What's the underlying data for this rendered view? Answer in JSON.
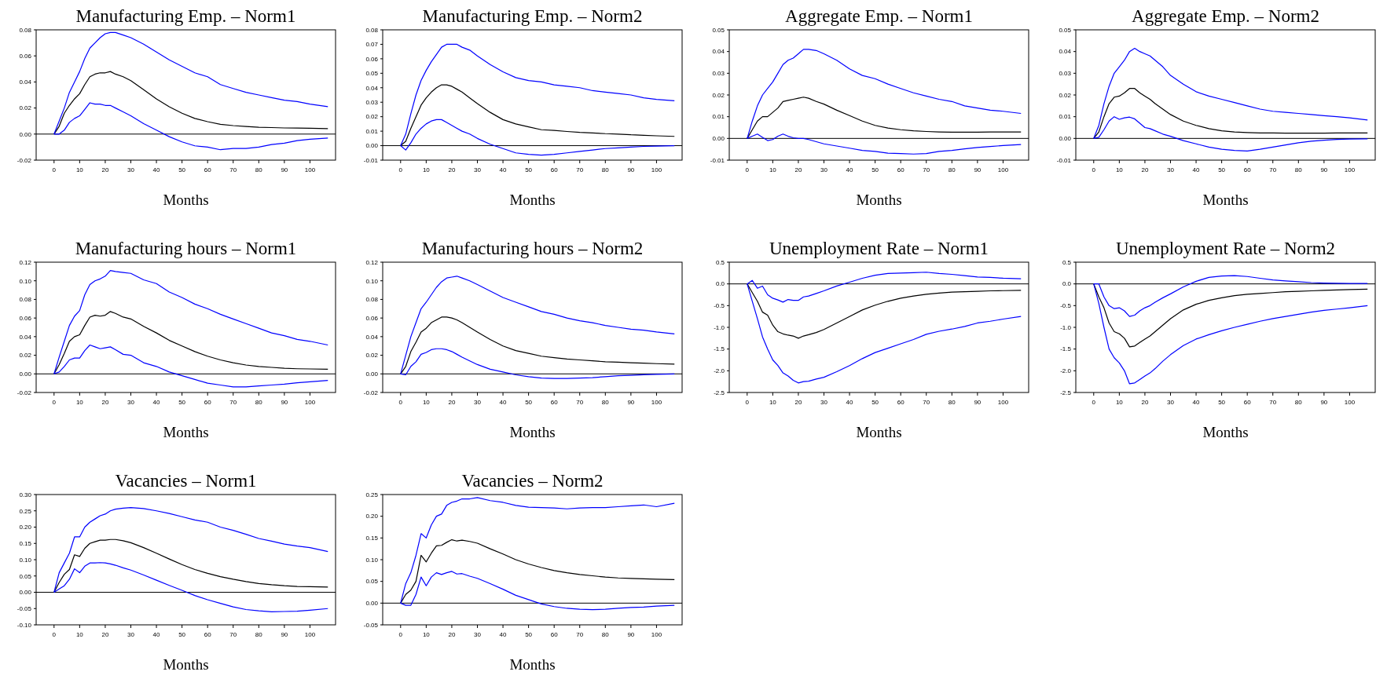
{
  "chart_data": [
    {
      "type": "line",
      "title": "Manufacturing Emp. – Norm1",
      "xlabel": "Months",
      "x": [
        0,
        2,
        4,
        6,
        8,
        10,
        12,
        14,
        16,
        18,
        20,
        22,
        24,
        27,
        30,
        35,
        40,
        45,
        50,
        55,
        60,
        65,
        70,
        75,
        80,
        85,
        90,
        95,
        100,
        107
      ],
      "xlim": [
        -7,
        110
      ],
      "xticks": [
        0,
        10,
        20,
        30,
        40,
        50,
        60,
        70,
        80,
        90,
        100
      ],
      "ylim": [
        -0.02,
        0.08
      ],
      "yticks": [
        {
          "value": -0.02,
          "label": "-0.02"
        },
        {
          "value": 0,
          "label": "0.00"
        },
        {
          "value": 0.02,
          "label": "0.02"
        },
        {
          "value": 0.04,
          "label": "0.04"
        },
        {
          "value": 0.06,
          "label": "0.06"
        },
        {
          "value": 0.08,
          "label": "0.08"
        }
      ],
      "ref_lines": [
        {
          "axis": "y",
          "value": 0,
          "color": "#000000"
        }
      ],
      "series": [
        {
          "color": "#000000",
          "values": [
            0,
            0.006,
            0.016,
            0.022,
            0.027,
            0.031,
            0.038,
            0.044,
            0.046,
            0.047,
            0.047,
            0.048,
            0.046,
            0.044,
            0.041,
            0.034,
            0.027,
            0.021,
            0.016,
            0.012,
            0.0095,
            0.0075,
            0.0065,
            0.0058,
            0.0052,
            0.005,
            0.0047,
            0.0046,
            0.0045,
            0.0042
          ]
        },
        {
          "color": "#0000ff",
          "values": [
            0,
            0.01,
            0.02,
            0.032,
            0.04,
            0.048,
            0.058,
            0.066,
            0.07,
            0.074,
            0.077,
            0.078,
            0.078,
            0.076,
            0.074,
            0.069,
            0.063,
            0.057,
            0.052,
            0.047,
            0.044,
            0.038,
            0.035,
            0.032,
            0.03,
            0.028,
            0.026,
            0.025,
            0.023,
            0.021
          ]
        },
        {
          "color": "#0000ff",
          "values": [
            0,
            0,
            0.003,
            0.009,
            0.012,
            0.014,
            0.019,
            0.024,
            0.023,
            0.023,
            0.022,
            0.022,
            0.02,
            0.017,
            0.014,
            0.008,
            0.003,
            -0.002,
            -0.006,
            -0.009,
            -0.01,
            -0.012,
            -0.011,
            -0.011,
            -0.01,
            -0.008,
            -0.007,
            -0.005,
            -0.004,
            -0.003
          ]
        }
      ]
    },
    {
      "type": "line",
      "title": "Manufacturing Emp. – Norm2",
      "xlabel": "Months",
      "x": [
        0,
        2,
        4,
        6,
        8,
        10,
        12,
        14,
        16,
        18,
        20,
        22,
        24,
        27,
        30,
        35,
        40,
        45,
        50,
        55,
        60,
        65,
        70,
        75,
        80,
        85,
        90,
        95,
        100,
        107
      ],
      "xlim": [
        -7,
        110
      ],
      "xticks": [
        0,
        10,
        20,
        30,
        40,
        50,
        60,
        70,
        80,
        90,
        100
      ],
      "ylim": [
        -0.01,
        0.08
      ],
      "yticks": [
        {
          "value": -0.01,
          "label": "-0.01"
        },
        {
          "value": 0,
          "label": "0.00"
        },
        0.01,
        0.02,
        0.03,
        0.04,
        0.05,
        0.06,
        0.07,
        0.08
      ],
      "ref_lines": [
        {
          "axis": "y",
          "value": 0,
          "color": "#000000"
        }
      ],
      "series": [
        {
          "color": "#000000",
          "values": [
            0,
            0.003,
            0.012,
            0.02,
            0.028,
            0.033,
            0.037,
            0.04,
            0.042,
            0.042,
            0.041,
            0.039,
            0.037,
            0.033,
            0.029,
            0.023,
            0.018,
            0.015,
            0.013,
            0.011,
            0.0105,
            0.0098,
            0.0092,
            0.0088,
            0.0083,
            0.008,
            0.0075,
            0.0072,
            0.0068,
            0.0064
          ]
        },
        {
          "color": "#0000ff",
          "values": [
            0,
            0.008,
            0.022,
            0.035,
            0.045,
            0.052,
            0.058,
            0.063,
            0.068,
            0.07,
            0.07,
            0.07,
            0.068,
            0.066,
            0.062,
            0.056,
            0.051,
            0.047,
            0.045,
            0.044,
            0.042,
            0.041,
            0.04,
            0.038,
            0.037,
            0.036,
            0.035,
            0.033,
            0.032,
            0.031
          ]
        },
        {
          "color": "#0000ff",
          "values": [
            0,
            -0.003,
            0.002,
            0.008,
            0.012,
            0.015,
            0.017,
            0.018,
            0.018,
            0.016,
            0.014,
            0.012,
            0.01,
            0.008,
            0.005,
            0.001,
            -0.002,
            -0.005,
            -0.006,
            -0.0065,
            -0.006,
            -0.005,
            -0.004,
            -0.003,
            -0.002,
            -0.0015,
            -0.001,
            -0.0005,
            -0.0003,
            0
          ]
        }
      ]
    },
    {
      "type": "line",
      "title": "Aggregate Emp. – Norm1",
      "xlabel": "Months",
      "x": [
        0,
        2,
        4,
        6,
        8,
        10,
        12,
        14,
        16,
        18,
        20,
        22,
        24,
        27,
        30,
        35,
        40,
        45,
        50,
        55,
        60,
        65,
        70,
        75,
        80,
        85,
        90,
        95,
        100,
        107
      ],
      "xlim": [
        -7,
        110
      ],
      "xticks": [
        0,
        10,
        20,
        30,
        40,
        50,
        60,
        70,
        80,
        90,
        100
      ],
      "ylim": [
        -0.01,
        0.05
      ],
      "yticks": [
        {
          "value": -0.01,
          "label": "-0.01"
        },
        {
          "value": 0,
          "label": "0.00"
        },
        0.01,
        0.02,
        0.03,
        0.04,
        0.05
      ],
      "ref_lines": [
        {
          "axis": "y",
          "value": 0,
          "color": "#000000"
        }
      ],
      "series": [
        {
          "color": "#000000",
          "values": [
            0,
            0.004,
            0.008,
            0.01,
            0.01,
            0.012,
            0.014,
            0.017,
            0.0175,
            0.018,
            0.0185,
            0.019,
            0.0185,
            0.017,
            0.0158,
            0.013,
            0.0105,
            0.008,
            0.006,
            0.0048,
            0.004,
            0.0035,
            0.0032,
            0.003,
            0.0029,
            0.0029,
            0.0029,
            0.003,
            0.003,
            0.003
          ]
        },
        {
          "color": "#0000ff",
          "values": [
            0,
            0.008,
            0.015,
            0.02,
            0.023,
            0.026,
            0.03,
            0.034,
            0.036,
            0.037,
            0.039,
            0.041,
            0.041,
            0.0405,
            0.039,
            0.036,
            0.032,
            0.029,
            0.0275,
            0.025,
            0.023,
            0.021,
            0.0195,
            0.018,
            0.017,
            0.015,
            0.014,
            0.013,
            0.0125,
            0.0115
          ]
        },
        {
          "color": "#0000ff",
          "values": [
            0,
            0.001,
            0.002,
            0.0005,
            -0.001,
            -0.0005,
            0.001,
            0.002,
            0.001,
            0.0003,
            0,
            0,
            -0.0005,
            -0.0015,
            -0.0025,
            -0.0035,
            -0.0045,
            -0.0055,
            -0.006,
            -0.0068,
            -0.007,
            -0.0072,
            -0.007,
            -0.006,
            -0.0055,
            -0.0048,
            -0.0042,
            -0.0037,
            -0.0033,
            -0.0028
          ]
        }
      ]
    },
    {
      "type": "line",
      "title": "Aggregate Emp. – Norm2",
      "xlabel": "Months",
      "x": [
        0,
        2,
        4,
        6,
        8,
        10,
        12,
        14,
        16,
        18,
        20,
        22,
        24,
        27,
        30,
        35,
        40,
        45,
        50,
        55,
        60,
        65,
        70,
        75,
        80,
        85,
        90,
        95,
        100,
        107
      ],
      "xlim": [
        -7,
        110
      ],
      "xticks": [
        0,
        10,
        20,
        30,
        40,
        50,
        60,
        70,
        80,
        90,
        100
      ],
      "ylim": [
        -0.01,
        0.05
      ],
      "yticks": [
        {
          "value": -0.01,
          "label": "-0.01"
        },
        {
          "value": 0,
          "label": "0.00"
        },
        0.01,
        0.02,
        0.03,
        0.04,
        0.05
      ],
      "ref_lines": [
        {
          "axis": "y",
          "value": 0,
          "color": "#000000"
        }
      ],
      "series": [
        {
          "color": "#000000",
          "values": [
            0,
            0.003,
            0.01,
            0.016,
            0.019,
            0.0195,
            0.021,
            0.023,
            0.023,
            0.021,
            0.0195,
            0.018,
            0.016,
            0.0135,
            0.011,
            0.008,
            0.006,
            0.0045,
            0.0035,
            0.003,
            0.0027,
            0.0025,
            0.0025,
            0.0024,
            0.0024,
            0.0024,
            0.0024,
            0.0025,
            0.0025,
            0.0025
          ]
        },
        {
          "color": "#0000ff",
          "values": [
            0,
            0.006,
            0.016,
            0.024,
            0.03,
            0.033,
            0.036,
            0.04,
            0.0415,
            0.04,
            0.039,
            0.038,
            0.036,
            0.033,
            0.029,
            0.025,
            0.0215,
            0.0195,
            0.018,
            0.0165,
            0.015,
            0.0135,
            0.0125,
            0.012,
            0.0115,
            0.011,
            0.0105,
            0.01,
            0.0095,
            0.0085
          ]
        },
        {
          "color": "#0000ff",
          "values": [
            0,
            0.0005,
            0.004,
            0.008,
            0.01,
            0.0088,
            0.0095,
            0.0098,
            0.009,
            0.007,
            0.005,
            0.0045,
            0.0035,
            0.002,
            0.001,
            -0.001,
            -0.0025,
            -0.004,
            -0.005,
            -0.0055,
            -0.0058,
            -0.005,
            -0.004,
            -0.003,
            -0.002,
            -0.0013,
            -0.0008,
            -0.0005,
            -0.0003,
            -0.0002
          ]
        }
      ]
    },
    {
      "type": "line",
      "title": "Manufacturing hours – Norm1",
      "xlabel": "Months",
      "x": [
        0,
        2,
        4,
        6,
        8,
        10,
        12,
        14,
        16,
        18,
        20,
        22,
        24,
        27,
        30,
        35,
        40,
        45,
        50,
        55,
        60,
        65,
        70,
        75,
        80,
        85,
        90,
        95,
        100,
        107
      ],
      "xlim": [
        -7,
        110
      ],
      "xticks": [
        0,
        10,
        20,
        30,
        40,
        50,
        60,
        70,
        80,
        90,
        100
      ],
      "ylim": [
        -0.02,
        0.12
      ],
      "yticks": [
        {
          "value": -0.02,
          "label": "-0.02"
        },
        {
          "value": 0,
          "label": "0.00"
        },
        0.02,
        0.04,
        0.06,
        0.08,
        {
          "value": 0.1,
          "label": "0.10"
        },
        0.12
      ],
      "ref_lines": [
        {
          "axis": "y",
          "value": 0,
          "color": "#000000"
        }
      ],
      "series": [
        {
          "color": "#000000",
          "values": [
            0,
            0.01,
            0.022,
            0.035,
            0.04,
            0.042,
            0.052,
            0.061,
            0.063,
            0.062,
            0.063,
            0.067,
            0.065,
            0.061,
            0.059,
            0.051,
            0.044,
            0.036,
            0.03,
            0.024,
            0.019,
            0.015,
            0.012,
            0.0095,
            0.008,
            0.007,
            0.006,
            0.0055,
            0.0053,
            0.005
          ]
        },
        {
          "color": "#0000ff",
          "values": [
            0,
            0.018,
            0.035,
            0.052,
            0.062,
            0.068,
            0.085,
            0.096,
            0.1,
            0.102,
            0.105,
            0.111,
            0.11,
            0.109,
            0.108,
            0.101,
            0.097,
            0.088,
            0.082,
            0.075,
            0.07,
            0.064,
            0.059,
            0.054,
            0.049,
            0.044,
            0.041,
            0.037,
            0.035,
            0.031
          ]
        },
        {
          "color": "#0000ff",
          "values": [
            0,
            0.002,
            0.008,
            0.015,
            0.017,
            0.017,
            0.025,
            0.031,
            0.029,
            0.027,
            0.028,
            0.029,
            0.026,
            0.021,
            0.02,
            0.012,
            0.008,
            0.002,
            -0.002,
            -0.006,
            -0.01,
            -0.012,
            -0.014,
            -0.014,
            -0.013,
            -0.012,
            -0.011,
            -0.0095,
            -0.0085,
            -0.007
          ]
        }
      ]
    },
    {
      "type": "line",
      "title": "Manufacturing hours – Norm2",
      "xlabel": "Months",
      "x": [
        0,
        2,
        4,
        6,
        8,
        10,
        12,
        14,
        16,
        18,
        20,
        22,
        24,
        27,
        30,
        35,
        40,
        45,
        50,
        55,
        60,
        65,
        70,
        75,
        80,
        85,
        90,
        95,
        100,
        107
      ],
      "xlim": [
        -7,
        110
      ],
      "xticks": [
        0,
        10,
        20,
        30,
        40,
        50,
        60,
        70,
        80,
        90,
        100
      ],
      "ylim": [
        -0.02,
        0.12
      ],
      "yticks": [
        {
          "value": -0.02,
          "label": "-0.02"
        },
        {
          "value": 0,
          "label": "0.00"
        },
        0.02,
        0.04,
        0.06,
        0.08,
        {
          "value": 0.1,
          "label": "0.10"
        },
        0.12
      ],
      "ref_lines": [
        {
          "axis": "y",
          "value": 0,
          "color": "#000000"
        }
      ],
      "series": [
        {
          "color": "#000000",
          "values": [
            0,
            0.008,
            0.024,
            0.034,
            0.045,
            0.049,
            0.055,
            0.058,
            0.061,
            0.061,
            0.06,
            0.058,
            0.055,
            0.05,
            0.045,
            0.037,
            0.03,
            0.025,
            0.022,
            0.019,
            0.0175,
            0.016,
            0.015,
            0.014,
            0.013,
            0.0125,
            0.012,
            0.0115,
            0.011,
            0.0105
          ]
        },
        {
          "color": "#0000ff",
          "values": [
            0,
            0.02,
            0.04,
            0.055,
            0.07,
            0.077,
            0.085,
            0.093,
            0.099,
            0.103,
            0.104,
            0.105,
            0.103,
            0.1,
            0.096,
            0.089,
            0.082,
            0.077,
            0.072,
            0.067,
            0.064,
            0.06,
            0.057,
            0.055,
            0.052,
            0.05,
            0.048,
            0.047,
            0.045,
            0.043
          ]
        },
        {
          "color": "#0000ff",
          "values": [
            0,
            -0.001,
            0.008,
            0.013,
            0.021,
            0.023,
            0.026,
            0.027,
            0.027,
            0.026,
            0.024,
            0.021,
            0.018,
            0.014,
            0.01,
            0.005,
            0.002,
            -0.001,
            -0.003,
            -0.0045,
            -0.005,
            -0.005,
            -0.0045,
            -0.004,
            -0.003,
            -0.002,
            -0.0015,
            -0.001,
            -0.0005,
            0
          ]
        }
      ]
    },
    {
      "type": "line",
      "title": "Unemployment Rate – Norm1",
      "xlabel": "Months",
      "x": [
        0,
        2,
        4,
        6,
        8,
        10,
        12,
        14,
        16,
        18,
        20,
        22,
        24,
        27,
        30,
        35,
        40,
        45,
        50,
        55,
        60,
        65,
        70,
        75,
        80,
        85,
        90,
        95,
        100,
        107
      ],
      "xlim": [
        -7,
        110
      ],
      "xticks": [
        0,
        10,
        20,
        30,
        40,
        50,
        60,
        70,
        80,
        90,
        100
      ],
      "ylim": [
        -2.5,
        0.5
      ],
      "yticks": [
        -2.5,
        {
          "value": -2,
          "label": "-2.0"
        },
        -1.5,
        {
          "value": -1,
          "label": "-1.0"
        },
        -0.5,
        {
          "value": 0,
          "label": "0.0"
        },
        0.5
      ],
      "ref_lines": [
        {
          "axis": "y",
          "value": 0,
          "color": "#000000"
        }
      ],
      "series": [
        {
          "color": "#000000",
          "values": [
            0,
            -0.2,
            -0.4,
            -0.65,
            -0.72,
            -0.95,
            -1.1,
            -1.15,
            -1.18,
            -1.2,
            -1.25,
            -1.2,
            -1.17,
            -1.12,
            -1.05,
            -0.9,
            -0.75,
            -0.6,
            -0.49,
            -0.4,
            -0.33,
            -0.28,
            -0.24,
            -0.21,
            -0.19,
            -0.18,
            -0.17,
            -0.16,
            -0.155,
            -0.15
          ]
        },
        {
          "color": "#0000ff",
          "values": [
            0,
            0.08,
            -0.1,
            -0.05,
            -0.25,
            -0.33,
            -0.37,
            -0.42,
            -0.36,
            -0.38,
            -0.38,
            -0.3,
            -0.28,
            -0.22,
            -0.16,
            -0.05,
            0.04,
            0.13,
            0.2,
            0.24,
            0.25,
            0.26,
            0.27,
            0.24,
            0.22,
            0.19,
            0.16,
            0.15,
            0.13,
            0.12
          ]
        },
        {
          "color": "#0000ff",
          "values": [
            0,
            -0.4,
            -0.8,
            -1.22,
            -1.5,
            -1.75,
            -1.88,
            -2.05,
            -2.12,
            -2.22,
            -2.28,
            -2.25,
            -2.24,
            -2.19,
            -2.15,
            -2.02,
            -1.88,
            -1.72,
            -1.58,
            -1.48,
            -1.38,
            -1.28,
            -1.16,
            -1.09,
            -1.04,
            -0.98,
            -0.9,
            -0.86,
            -0.81,
            -0.75
          ]
        }
      ]
    },
    {
      "type": "line",
      "title": "Unemployment Rate – Norm2",
      "xlabel": "Months",
      "x": [
        0,
        2,
        4,
        6,
        8,
        10,
        12,
        14,
        16,
        18,
        20,
        22,
        24,
        27,
        30,
        35,
        40,
        45,
        50,
        55,
        60,
        65,
        70,
        75,
        80,
        85,
        90,
        95,
        100,
        107
      ],
      "xlim": [
        -7,
        110
      ],
      "xticks": [
        0,
        10,
        20,
        30,
        40,
        50,
        60,
        70,
        80,
        90,
        100
      ],
      "ylim": [
        -2.5,
        0.5
      ],
      "yticks": [
        -2.5,
        {
          "value": -2,
          "label": "-2.0"
        },
        -1.5,
        {
          "value": -1,
          "label": "-1.0"
        },
        -0.5,
        {
          "value": 0,
          "label": "0.0"
        },
        0.5
      ],
      "ref_lines": [
        {
          "axis": "y",
          "value": 0,
          "color": "#000000"
        }
      ],
      "series": [
        {
          "color": "#000000",
          "values": [
            0,
            -0.3,
            -0.55,
            -0.9,
            -1.1,
            -1.15,
            -1.25,
            -1.45,
            -1.43,
            -1.35,
            -1.27,
            -1.2,
            -1.1,
            -0.95,
            -0.8,
            -0.6,
            -0.47,
            -0.38,
            -0.32,
            -0.27,
            -0.24,
            -0.22,
            -0.2,
            -0.18,
            -0.17,
            -0.16,
            -0.15,
            -0.14,
            -0.13,
            -0.12
          ]
        },
        {
          "color": "#0000ff",
          "values": [
            0,
            0,
            -0.3,
            -0.5,
            -0.57,
            -0.55,
            -0.62,
            -0.75,
            -0.72,
            -0.62,
            -0.55,
            -0.5,
            -0.42,
            -0.32,
            -0.23,
            -0.07,
            0.06,
            0.15,
            0.18,
            0.19,
            0.17,
            0.13,
            0.09,
            0.07,
            0.05,
            0.03,
            0.02,
            0.015,
            0.01,
            0.01
          ]
        },
        {
          "color": "#0000ff",
          "values": [
            0,
            -0.45,
            -1,
            -1.5,
            -1.7,
            -1.82,
            -2,
            -2.3,
            -2.28,
            -2.2,
            -2.12,
            -2.05,
            -1.95,
            -1.78,
            -1.63,
            -1.42,
            -1.27,
            -1.17,
            -1.08,
            -1,
            -0.93,
            -0.86,
            -0.8,
            -0.75,
            -0.7,
            -0.65,
            -0.61,
            -0.58,
            -0.55,
            -0.5
          ]
        }
      ]
    },
    {
      "type": "line",
      "title": "Vacancies – Norm1",
      "xlabel": "Months",
      "x": [
        0,
        2,
        4,
        6,
        8,
        10,
        12,
        14,
        16,
        18,
        20,
        22,
        24,
        27,
        30,
        35,
        40,
        45,
        50,
        55,
        60,
        65,
        70,
        75,
        80,
        85,
        90,
        95,
        100,
        107
      ],
      "xlim": [
        -7,
        110
      ],
      "xticks": [
        0,
        10,
        20,
        30,
        40,
        50,
        60,
        70,
        80,
        90,
        100
      ],
      "ylim": [
        -0.1,
        0.3
      ],
      "yticks": [
        {
          "value": -0.1,
          "label": "-0.10"
        },
        -0.05,
        {
          "value": 0,
          "label": "0.00"
        },
        0.05,
        {
          "value": 0.1,
          "label": "0.10"
        },
        0.15,
        {
          "value": 0.2,
          "label": "0.20"
        },
        0.25,
        {
          "value": 0.3,
          "label": "0.30"
        }
      ],
      "ref_lines": [
        {
          "axis": "y",
          "value": 0,
          "color": "#000000"
        }
      ],
      "series": [
        {
          "color": "#000000",
          "values": [
            0,
            0.03,
            0.055,
            0.07,
            0.115,
            0.11,
            0.135,
            0.15,
            0.155,
            0.16,
            0.16,
            0.162,
            0.162,
            0.158,
            0.152,
            0.137,
            0.12,
            0.102,
            0.085,
            0.07,
            0.058,
            0.048,
            0.04,
            0.033,
            0.027,
            0.023,
            0.02,
            0.018,
            0.017,
            0.016
          ]
        },
        {
          "color": "#0000ff",
          "values": [
            0,
            0.06,
            0.09,
            0.12,
            0.17,
            0.17,
            0.2,
            0.215,
            0.225,
            0.235,
            0.24,
            0.25,
            0.255,
            0.258,
            0.26,
            0.257,
            0.25,
            0.242,
            0.232,
            0.222,
            0.215,
            0.2,
            0.19,
            0.178,
            0.165,
            0.157,
            0.148,
            0.142,
            0.137,
            0.125
          ]
        },
        {
          "color": "#0000ff",
          "values": [
            0,
            0.01,
            0.02,
            0.04,
            0.072,
            0.06,
            0.08,
            0.09,
            0.09,
            0.091,
            0.09,
            0.087,
            0.083,
            0.075,
            0.068,
            0.053,
            0.037,
            0.021,
            0.006,
            -0.01,
            -0.023,
            -0.034,
            -0.045,
            -0.053,
            -0.057,
            -0.06,
            -0.059,
            -0.058,
            -0.055,
            -0.05
          ]
        }
      ]
    },
    {
      "type": "line",
      "title": "Vacancies – Norm2",
      "xlabel": "Months",
      "x": [
        0,
        2,
        4,
        6,
        8,
        10,
        12,
        14,
        16,
        18,
        20,
        22,
        24,
        27,
        30,
        35,
        40,
        45,
        50,
        55,
        60,
        65,
        70,
        75,
        80,
        85,
        90,
        95,
        100,
        107
      ],
      "xlim": [
        -7,
        110
      ],
      "xticks": [
        0,
        10,
        20,
        30,
        40,
        50,
        60,
        70,
        80,
        90,
        100
      ],
      "ylim": [
        -0.05,
        0.25
      ],
      "yticks": [
        -0.05,
        {
          "value": 0,
          "label": "0.00"
        },
        0.05,
        {
          "value": 0.1,
          "label": "0.10"
        },
        0.15,
        {
          "value": 0.2,
          "label": "0.20"
        },
        0.25
      ],
      "ref_lines": [
        {
          "axis": "y",
          "value": 0,
          "color": "#000000"
        }
      ],
      "series": [
        {
          "color": "#000000",
          "values": [
            0,
            0.02,
            0.03,
            0.05,
            0.11,
            0.095,
            0.115,
            0.132,
            0.133,
            0.14,
            0.146,
            0.143,
            0.145,
            0.142,
            0.138,
            0.125,
            0.113,
            0.1,
            0.09,
            0.082,
            0.075,
            0.07,
            0.066,
            0.063,
            0.06,
            0.058,
            0.057,
            0.056,
            0.055,
            0.054
          ]
        },
        {
          "color": "#0000ff",
          "values": [
            0,
            0.045,
            0.07,
            0.11,
            0.16,
            0.15,
            0.18,
            0.2,
            0.205,
            0.225,
            0.232,
            0.235,
            0.24,
            0.24,
            0.243,
            0.236,
            0.232,
            0.225,
            0.221,
            0.22,
            0.219,
            0.217,
            0.219,
            0.22,
            0.22,
            0.222,
            0.224,
            0.226,
            0.222,
            0.23
          ]
        },
        {
          "color": "#0000ff",
          "values": [
            0,
            -0.005,
            -0.005,
            0.02,
            0.06,
            0.04,
            0.06,
            0.07,
            0.066,
            0.07,
            0.073,
            0.067,
            0.068,
            0.062,
            0.057,
            0.045,
            0.032,
            0.018,
            0.008,
            -0.002,
            -0.008,
            -0.012,
            -0.014,
            -0.015,
            -0.014,
            -0.012,
            -0.01,
            -0.009,
            -0.007,
            -0.005
          ]
        }
      ]
    }
  ]
}
